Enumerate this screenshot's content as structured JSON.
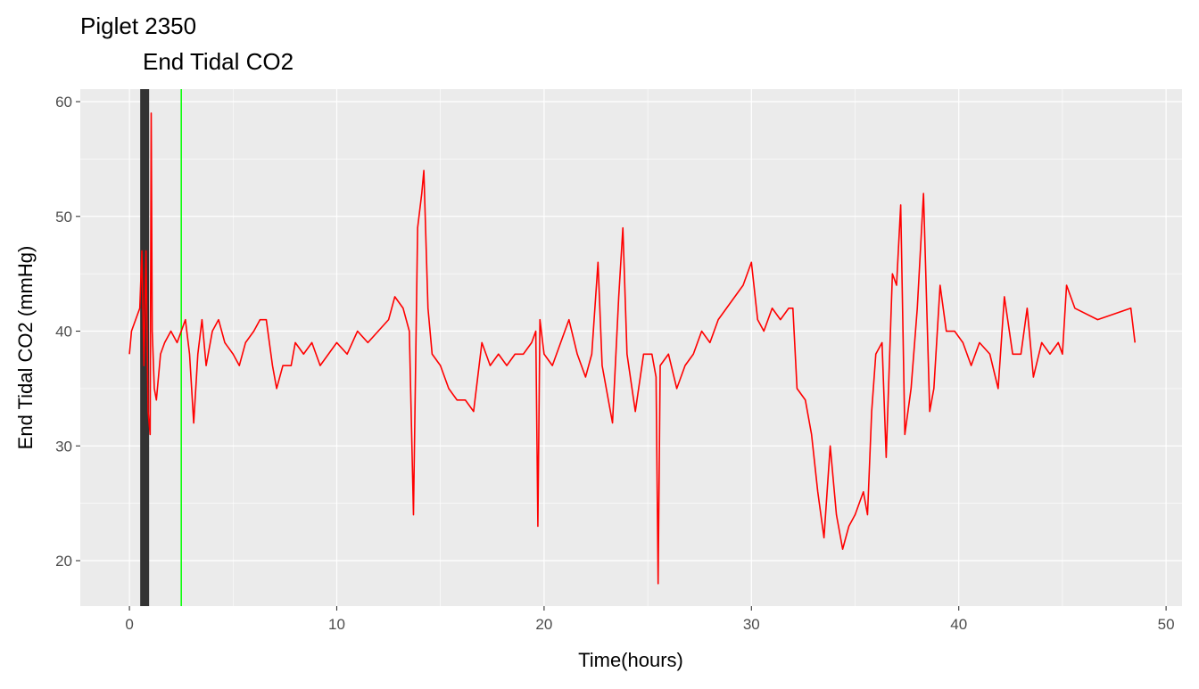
{
  "chart_data": {
    "type": "line",
    "title": "Piglet 2350",
    "subtitle": "End Tidal CO2",
    "x_label": "Time(hours)",
    "y_label": "End Tidal CO2 (mmHg)",
    "xlim": [
      -2.37,
      50.77
    ],
    "ylim": [
      16.04,
      61.09
    ],
    "xticks": [
      0,
      10,
      20,
      30,
      40,
      50
    ],
    "yticks": [
      20,
      30,
      40,
      50,
      60
    ],
    "grid": true,
    "shaded_region": {
      "x": [
        0.52,
        0.95
      ],
      "color": "#333333"
    },
    "reference_line": {
      "x": 2.5,
      "color": "#00ff00"
    },
    "x": [
      0,
      0.1,
      0.3,
      0.5,
      0.6,
      0.7,
      0.8,
      0.9,
      1.0,
      1.05,
      1.1,
      1.2,
      1.3,
      1.5,
      1.7,
      2.0,
      2.3,
      2.5,
      2.7,
      2.9,
      3.1,
      3.3,
      3.5,
      3.7,
      4.0,
      4.3,
      4.6,
      5.0,
      5.3,
      5.6,
      6.0,
      6.3,
      6.6,
      6.9,
      7.1,
      7.4,
      7.8,
      8.0,
      8.4,
      8.8,
      9.2,
      9.6,
      10.0,
      10.5,
      11.0,
      11.5,
      12.0,
      12.5,
      12.8,
      13.2,
      13.5,
      13.7,
      13.9,
      14.1,
      14.2,
      14.4,
      14.6,
      15.0,
      15.4,
      15.8,
      16.2,
      16.6,
      17.0,
      17.4,
      17.8,
      18.2,
      18.6,
      19.0,
      19.4,
      19.6,
      19.7,
      19.8,
      20.0,
      20.4,
      20.8,
      21.2,
      21.6,
      22.0,
      22.3,
      22.6,
      22.8,
      23.0,
      23.3,
      23.6,
      23.8,
      24.0,
      24.4,
      24.8,
      25.2,
      25.4,
      25.5,
      25.6,
      26.0,
      26.4,
      26.8,
      27.2,
      27.6,
      28.0,
      28.4,
      28.8,
      29.2,
      29.6,
      30.0,
      30.3,
      30.6,
      31.0,
      31.4,
      31.8,
      32.0,
      32.2,
      32.6,
      32.9,
      33.2,
      33.5,
      33.8,
      34.1,
      34.4,
      34.7,
      35.0,
      35.4,
      35.6,
      35.8,
      36.0,
      36.3,
      36.5,
      36.8,
      37.0,
      37.2,
      37.4,
      37.7,
      38.0,
      38.3,
      38.6,
      38.8,
      39.1,
      39.4,
      39.8,
      40.2,
      40.6,
      41.0,
      41.5,
      41.9,
      42.2,
      42.6,
      43.0,
      43.3,
      43.6,
      44.0,
      44.4,
      44.8,
      45.0,
      45.2,
      45.6,
      46.7,
      48.3,
      48.5
    ],
    "series": [
      {
        "color": "#ff0000",
        "values": [
          38,
          40,
          41,
          42,
          47,
          37,
          47,
          33,
          31,
          59,
          40,
          35,
          34,
          38,
          39,
          40,
          39,
          40,
          41,
          38,
          32,
          38,
          41,
          37,
          40,
          41,
          39,
          38,
          37,
          39,
          40,
          41,
          41,
          37,
          35,
          37,
          37,
          39,
          38,
          39,
          37,
          38,
          39,
          38,
          40,
          39,
          40,
          41,
          43,
          42,
          40,
          24,
          49,
          52,
          54,
          42,
          38,
          37,
          35,
          34,
          34,
          33,
          39,
          37,
          38,
          37,
          38,
          38,
          39,
          40,
          23,
          41,
          38,
          37,
          39,
          41,
          38,
          36,
          38,
          46,
          37,
          35,
          32,
          43,
          49,
          38,
          33,
          38,
          38,
          36,
          18,
          37,
          38,
          35,
          37,
          38,
          40,
          39,
          41,
          42,
          43,
          44,
          46,
          41,
          40,
          42,
          41,
          42,
          42,
          35,
          34,
          31,
          26,
          22,
          30,
          24,
          21,
          23,
          24,
          26,
          24,
          33,
          38,
          39,
          29,
          45,
          44,
          51,
          31,
          35,
          42,
          52,
          33,
          35,
          44,
          40,
          40,
          39,
          37,
          39,
          38,
          35,
          43,
          38,
          38,
          42,
          36,
          39,
          38,
          39,
          38,
          44,
          42,
          41,
          42,
          39
        ]
      }
    ]
  }
}
